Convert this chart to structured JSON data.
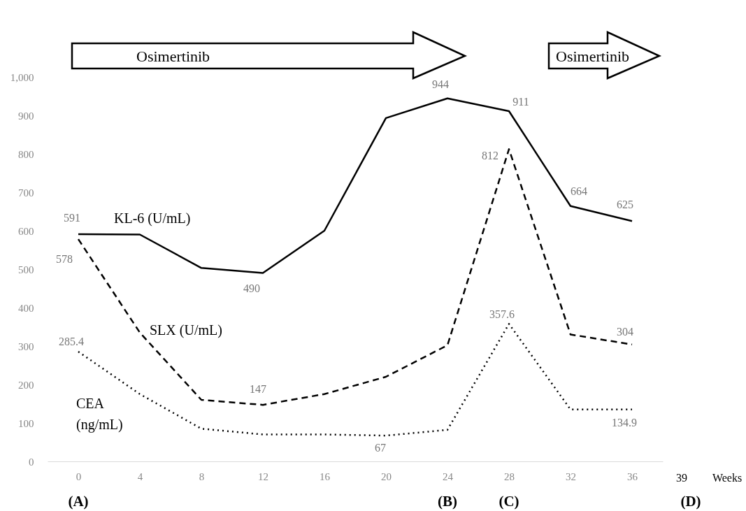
{
  "chart_data": {
    "type": "line",
    "xlabel": "Weeks",
    "categories": [
      "0",
      "4",
      "8",
      "12",
      "16",
      "20",
      "24",
      "28",
      "32",
      "36"
    ],
    "ylim": [
      0,
      1000
    ],
    "yticks": [
      0,
      100,
      200,
      300,
      400,
      500,
      600,
      700,
      800,
      900,
      {
        "value": 1000,
        "label": "1,000"
      }
    ],
    "grid": false,
    "series": [
      {
        "name": "KL-6 (U/mL)",
        "color": "#000000",
        "line_style": "solid",
        "values": [
          591,
          590,
          503,
          490,
          600,
          893,
          944,
          911,
          664,
          625
        ],
        "value_labels": [
          "591",
          null,
          null,
          "490",
          null,
          null,
          "944",
          "911",
          "664",
          "625"
        ]
      },
      {
        "name": "SLX (U/mL)",
        "color": "#000000",
        "line_style": "dashed",
        "values": [
          578,
          335,
          160,
          147,
          175,
          220,
          302,
          812,
          330,
          304
        ],
        "value_labels": [
          "578",
          null,
          null,
          "147",
          null,
          null,
          null,
          "812",
          null,
          "304"
        ]
      },
      {
        "name": "CEA (ng/mL)",
        "color": "#000000",
        "line_style": "dotted",
        "values": [
          285.4,
          175,
          85,
          70,
          70,
          67,
          82,
          357.6,
          135,
          134.9
        ],
        "value_labels": [
          "285.4",
          null,
          null,
          null,
          null,
          "67",
          null,
          "357.6",
          null,
          "134.9"
        ]
      }
    ],
    "annotations": [
      "Osimertinib",
      "Osimertinib",
      "39",
      "(A)",
      "(B)",
      "(C)",
      "(D)"
    ]
  }
}
